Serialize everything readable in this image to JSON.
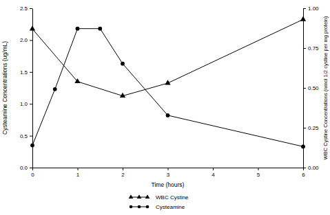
{
  "chart_data": {
    "type": "line",
    "x_label": "Time (hours)",
    "y_label": "Cysteamine Concentrations (ug/mL)",
    "y2_label": "WBC Cystine Concentrations (nmol 1/2 cystine per mg protein)",
    "xlim": [
      0,
      6
    ],
    "xticks": [
      0,
      1,
      2,
      3,
      4,
      5,
      6
    ],
    "ylim": [
      0,
      2.5
    ],
    "yticks": [
      {
        "value": 0,
        "label": "0.0"
      },
      {
        "value": 0.5,
        "label": "0.5"
      },
      {
        "value": 1,
        "label": "1.0"
      },
      {
        "value": 1.5,
        "label": "1.5"
      },
      {
        "value": 2,
        "label": "2.0"
      },
      {
        "value": 2.5,
        "label": "2.5"
      }
    ],
    "y2lim": [
      0,
      1
    ],
    "y2ticks": [
      {
        "value": 0,
        "label": "0.00"
      },
      {
        "value": 0.25,
        "label": "0.25"
      },
      {
        "value": 0.5,
        "label": "0.50"
      },
      {
        "value": 0.75,
        "label": "0.75"
      },
      {
        "value": 1,
        "label": "1.00"
      }
    ],
    "grid": false,
    "legend": "bottom",
    "series": [
      {
        "name": "WBC Cystine",
        "axis": "y2",
        "color": "#000000",
        "marker": "triangle",
        "line_style": "solid",
        "x": [
          0,
          1,
          2,
          3,
          6
        ],
        "values": [
          0.87,
          0.54,
          0.45,
          0.53,
          0.93
        ]
      },
      {
        "name": "Cysteamine",
        "color": "#000000",
        "marker": "circle",
        "line_style": "solid",
        "x": [
          0,
          0.5,
          1,
          1.5,
          2,
          3,
          6
        ],
        "values": [
          0.35,
          1.23,
          2.18,
          2.18,
          1.63,
          0.82,
          0.33
        ]
      }
    ]
  }
}
